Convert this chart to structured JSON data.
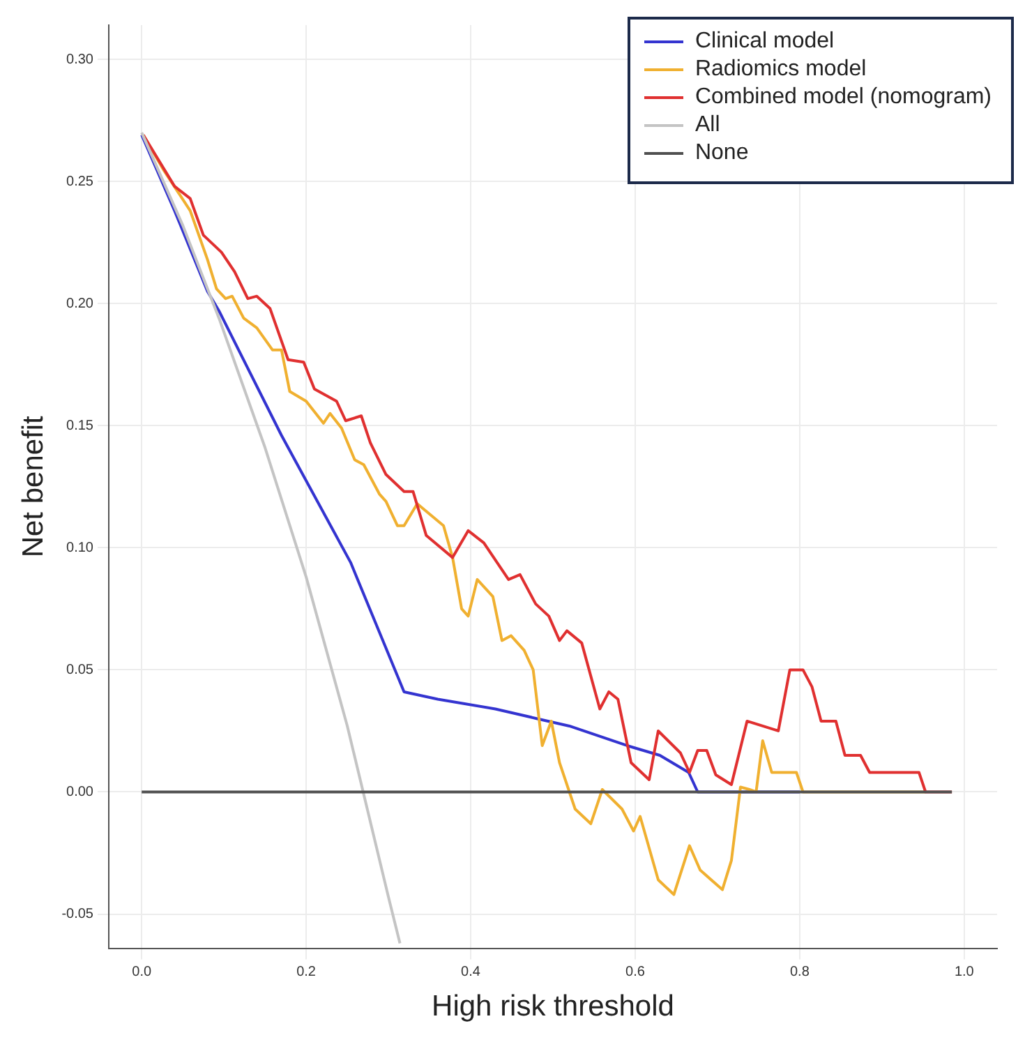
{
  "chart_data": {
    "type": "line",
    "xlabel": "High risk threshold",
    "ylabel": "Net benefit",
    "xlim": [
      -0.04,
      1.04
    ],
    "ylim": [
      -0.064,
      0.314
    ],
    "xticks": [
      {
        "value": 0,
        "label": "0.0"
      },
      {
        "value": 0.2,
        "label": "0.2"
      },
      {
        "value": 0.4,
        "label": "0.4"
      },
      {
        "value": 0.6,
        "label": "0.6"
      },
      {
        "value": 0.8,
        "label": "0.8"
      },
      {
        "value": 1,
        "label": "1.0"
      }
    ],
    "yticks": [
      {
        "value": -0.05,
        "label": "-0.05"
      },
      {
        "value": 0,
        "label": "0.00"
      },
      {
        "value": 0.05,
        "label": "0.05"
      },
      {
        "value": 0.1,
        "label": "0.10"
      },
      {
        "value": 0.15,
        "label": "0.15"
      },
      {
        "value": 0.2,
        "label": "0.20"
      },
      {
        "value": 0.25,
        "label": "0.25"
      },
      {
        "value": 0.3,
        "label": "0.30"
      }
    ],
    "grid": true,
    "legend": "top right",
    "series": [
      {
        "name": "Clinical model",
        "color": "#3434d0",
        "x": [
          0,
          0.04,
          0.08,
          0.094,
          0.17,
          0.254,
          0.319,
          0.36,
          0.43,
          0.481,
          0.52,
          0.59,
          0.63,
          0.665,
          0.676,
          0.8
        ],
        "values": [
          0.269,
          0.238,
          0.205,
          0.197,
          0.146,
          0.094,
          0.041,
          0.038,
          0.034,
          0.03,
          0.027,
          0.019,
          0.015,
          0.008,
          0,
          0
        ]
      },
      {
        "name": "Radiomics model",
        "color": "#f0b030",
        "x": [
          0.002,
          0.026,
          0.059,
          0.08,
          0.091,
          0.102,
          0.11,
          0.124,
          0.14,
          0.159,
          0.17,
          0.18,
          0.2,
          0.221,
          0.229,
          0.243,
          0.259,
          0.27,
          0.289,
          0.297,
          0.311,
          0.319,
          0.335,
          0.367,
          0.378,
          0.389,
          0.397,
          0.408,
          0.427,
          0.438,
          0.449,
          0.465,
          0.476,
          0.487,
          0.498,
          0.508,
          0.527,
          0.546,
          0.56,
          0.584,
          0.598,
          0.606,
          0.628,
          0.647,
          0.666,
          0.679,
          0.706,
          0.717,
          0.728,
          0.739,
          0.747,
          0.755,
          0.766,
          0.796,
          0.804,
          0.953
        ],
        "values": [
          0.269,
          0.255,
          0.238,
          0.218,
          0.206,
          0.202,
          0.203,
          0.194,
          0.19,
          0.181,
          0.181,
          0.164,
          0.16,
          0.151,
          0.155,
          0.149,
          0.136,
          0.134,
          0.122,
          0.119,
          0.109,
          0.109,
          0.118,
          0.109,
          0.096,
          0.075,
          0.072,
          0.087,
          0.08,
          0.062,
          0.064,
          0.058,
          0.05,
          0.019,
          0.029,
          0.012,
          -0.007,
          -0.013,
          0.001,
          -0.007,
          -0.016,
          -0.01,
          -0.036,
          -0.042,
          -0.022,
          -0.032,
          -0.04,
          -0.028,
          0.002,
          0.001,
          0,
          0.021,
          0.008,
          0.008,
          0,
          0
        ]
      },
      {
        "name": "Combined model (nomogram)",
        "color": "#e03030",
        "x": [
          0.002,
          0.04,
          0.059,
          0.075,
          0.097,
          0.113,
          0.129,
          0.14,
          0.156,
          0.178,
          0.197,
          0.21,
          0.237,
          0.248,
          0.267,
          0.278,
          0.297,
          0.319,
          0.33,
          0.346,
          0.378,
          0.397,
          0.416,
          0.446,
          0.46,
          0.479,
          0.495,
          0.508,
          0.517,
          0.535,
          0.557,
          0.568,
          0.579,
          0.595,
          0.617,
          0.628,
          0.655,
          0.666,
          0.676,
          0.687,
          0.698,
          0.717,
          0.736,
          0.774,
          0.788,
          0.804,
          0.815,
          0.826,
          0.844,
          0.855,
          0.874,
          0.885,
          0.945,
          0.953,
          0.985
        ],
        "values": [
          0.269,
          0.248,
          0.243,
          0.228,
          0.221,
          0.213,
          0.202,
          0.203,
          0.198,
          0.177,
          0.176,
          0.165,
          0.16,
          0.152,
          0.154,
          0.143,
          0.13,
          0.123,
          0.123,
          0.105,
          0.096,
          0.107,
          0.102,
          0.087,
          0.089,
          0.077,
          0.072,
          0.062,
          0.066,
          0.061,
          0.034,
          0.041,
          0.038,
          0.012,
          0.005,
          0.025,
          0.016,
          0.008,
          0.017,
          0.017,
          0.007,
          0.003,
          0.029,
          0.025,
          0.05,
          0.05,
          0.043,
          0.029,
          0.029,
          0.015,
          0.015,
          0.008,
          0.008,
          0,
          0
        ]
      },
      {
        "name": "All",
        "color": "#c4c4c4",
        "x": [
          0,
          0.05,
          0.094,
          0.15,
          0.2,
          0.25,
          0.3,
          0.314
        ],
        "values": [
          0.27,
          0.232,
          0.194,
          0.141,
          0.088,
          0.027,
          -0.043,
          -0.062
        ]
      },
      {
        "name": "None",
        "color": "#505050",
        "x": [
          0,
          0.985
        ],
        "values": [
          0,
          0
        ]
      }
    ]
  }
}
